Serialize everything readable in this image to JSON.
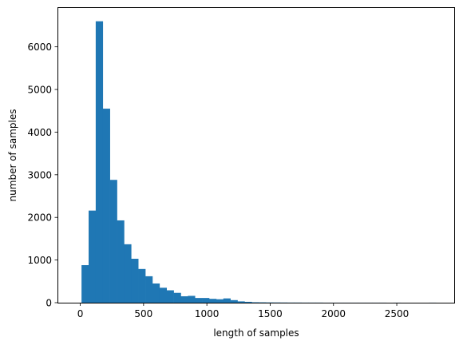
{
  "chart_data": {
    "type": "bar",
    "title": "",
    "xlabel": "length of samples",
    "ylabel": "number of samples",
    "xlim": [
      -180,
      2960
    ],
    "ylim": [
      0,
      6930
    ],
    "x_ticks": [
      0,
      500,
      1000,
      1500,
      2000,
      2500
    ],
    "y_ticks": [
      0,
      1000,
      2000,
      3000,
      4000,
      5000,
      6000
    ],
    "bin_width": 56,
    "bin_starts": [
      10,
      66,
      122,
      178,
      234,
      290,
      346,
      402,
      458,
      514,
      570,
      626,
      682,
      738,
      794,
      850,
      906,
      962,
      1018,
      1074,
      1130,
      1186,
      1242,
      1298,
      1354,
      1410,
      1466,
      1522,
      1578,
      1634,
      1690,
      1746,
      1802,
      1858,
      1914,
      1970,
      2026,
      2082,
      2138,
      2194,
      2250,
      2306,
      2362,
      2418,
      2474,
      2530,
      2586,
      2642,
      2698,
      2754
    ],
    "values": [
      880,
      2160,
      6600,
      4550,
      2880,
      1930,
      1370,
      1030,
      790,
      620,
      450,
      350,
      290,
      230,
      150,
      160,
      110,
      110,
      90,
      80,
      100,
      60,
      30,
      20,
      10,
      8,
      6,
      5,
      4,
      3,
      3,
      2,
      2,
      2,
      1,
      1,
      1,
      1,
      1,
      1,
      1,
      1,
      1,
      0,
      1,
      0,
      0,
      0,
      0,
      1
    ],
    "bar_color": "#1f77b4",
    "grid": false
  }
}
